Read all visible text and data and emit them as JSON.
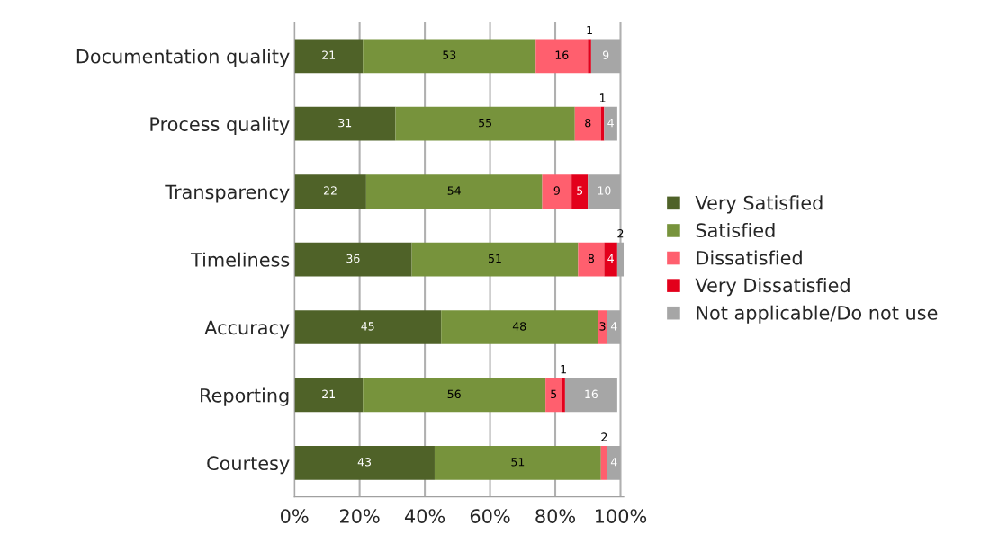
{
  "chart_data": {
    "type": "bar",
    "orientation": "horizontal",
    "stacked": true,
    "categories": [
      "Documentation quality",
      "Process quality",
      "Transparency",
      "Timeliness",
      "Accuracy",
      "Reporting",
      "Courtesy"
    ],
    "series": [
      {
        "name": "Very Satisfied",
        "color": "#4f6228",
        "values": [
          21,
          31,
          22,
          36,
          45,
          21,
          43
        ]
      },
      {
        "name": "Satisfied",
        "color": "#77933c",
        "values": [
          53,
          55,
          54,
          51,
          48,
          56,
          51
        ]
      },
      {
        "name": "Dissatisfied",
        "color": "#ff5f6e",
        "values": [
          16,
          8,
          9,
          8,
          3,
          5,
          2
        ]
      },
      {
        "name": "Very Dissatisfied",
        "color": "#e3001b",
        "values": [
          1,
          1,
          5,
          4,
          null,
          1,
          null
        ]
      },
      {
        "name": "Not applicable/Do not use",
        "color": "#a6a6a6",
        "values": [
          9,
          4,
          10,
          2,
          4,
          16,
          4
        ]
      }
    ],
    "xlim": [
      0,
      101
    ],
    "xticks": [
      {
        "value": 0,
        "label": "0%"
      },
      {
        "value": 20,
        "label": "20%"
      },
      {
        "value": 40,
        "label": "40%"
      },
      {
        "value": 60,
        "label": "60%"
      },
      {
        "value": 80,
        "label": "80%"
      },
      {
        "value": 100,
        "label": "100%"
      }
    ],
    "grid": "x",
    "legend": "right",
    "data_labels": true
  }
}
